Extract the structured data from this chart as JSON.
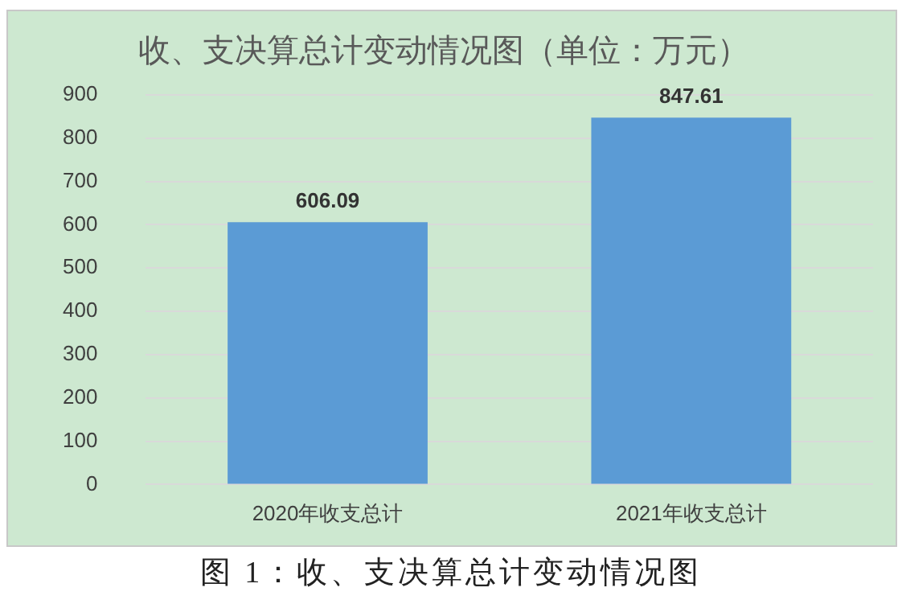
{
  "chart_data": {
    "type": "bar",
    "title": "收、支决算总计变动情况图（单位：万元）",
    "categories": [
      "2020年收支总计",
      "2021年收支总计"
    ],
    "values": [
      606.09,
      847.61
    ],
    "color": "#5b9bd5",
    "ylim": [
      0,
      900
    ],
    "yticks": [
      0,
      100,
      200,
      300,
      400,
      500,
      600,
      700,
      800,
      900
    ],
    "grid": "y",
    "legend": false,
    "data_labels": true,
    "annotations": [
      "图 1：收、支决算总计变动情况图"
    ]
  }
}
